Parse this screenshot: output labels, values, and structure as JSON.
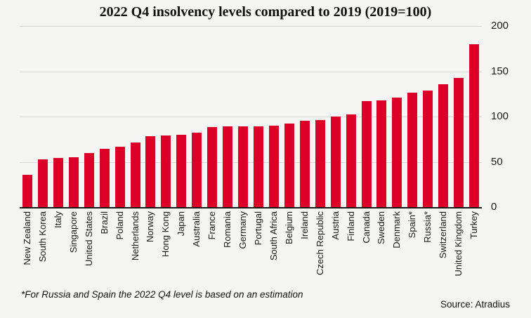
{
  "chart_data": {
    "type": "bar",
    "title": "2022 Q4 insolvency levels compared to 2019 (2019=100)",
    "categories": [
      "New Zealand",
      "South Korea",
      "Italy",
      "Singapore",
      "United States",
      "Brazil",
      "Poland",
      "Netherlands",
      "Norway",
      "Hong Kong",
      "Japan",
      "Australia",
      "France",
      "Romania",
      "Germany",
      "Portugal",
      "South Africa",
      "Belgium",
      "Ireland",
      "Czech Republic",
      "Austria",
      "Finland",
      "Canada",
      "Sweden",
      "Denmark",
      "Spain*",
      "Russia*",
      "Switzerland",
      "United Kingdom",
      "Turkey"
    ],
    "values": [
      36,
      53,
      54,
      55,
      60,
      64,
      67,
      71,
      78,
      79,
      80,
      82,
      88,
      89,
      89,
      89,
      90,
      92,
      95,
      96,
      100,
      102,
      117,
      118,
      121,
      126,
      129,
      136,
      143,
      180
    ],
    "xlabel": "",
    "ylabel": "",
    "ylim": [
      0,
      200
    ],
    "yticks": [
      0,
      50,
      100,
      150,
      200
    ],
    "grid": "horizontal",
    "legend": "none",
    "bar_color": "#dc0028"
  },
  "footnote": "*For Russia and Spain the 2022 Q4 level is based on an estimation",
  "source": "Source: Atradius",
  "colors": {
    "background": "#f5f5f4",
    "bar": "#dc0028",
    "gridline": "#d8d8d8",
    "axis": "#1a1a1a",
    "text": "#1a1a1a"
  }
}
